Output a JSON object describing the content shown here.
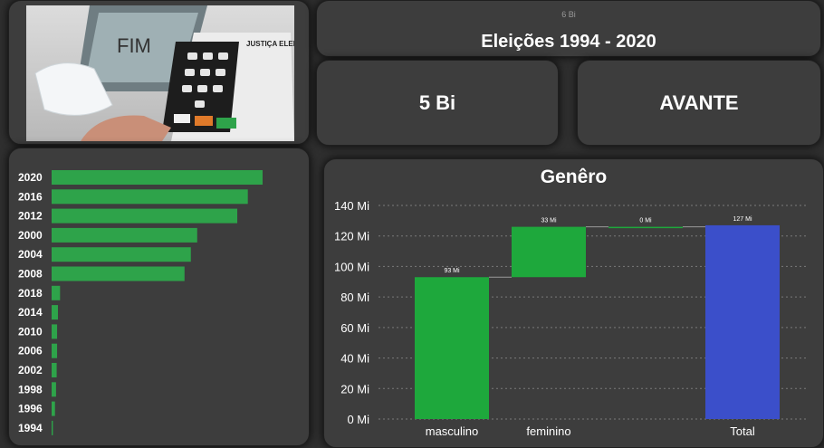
{
  "header": {
    "subtitle": "6 Bi",
    "title": "Eleições 1994 - 2020"
  },
  "kpi": {
    "value": "5 Bi"
  },
  "party": {
    "name": "AVANTE"
  },
  "photo": {
    "screen_text": "FIM",
    "sticker_text": "JUSTIÇA ELEITORAL"
  },
  "years_chart": {
    "type": "bar",
    "orientation": "horizontal",
    "categories": [
      "2020",
      "2016",
      "2012",
      "2000",
      "2004",
      "2008",
      "2018",
      "2014",
      "2010",
      "2006",
      "2002",
      "1998",
      "1996",
      "1994"
    ],
    "values": [
      100,
      93,
      88,
      69,
      66,
      63,
      4,
      3,
      2.6,
      2.6,
      2.4,
      2.1,
      1.6,
      0.6
    ],
    "color": "#2ea34a"
  },
  "chart_data": {
    "type": "waterfall",
    "title": "Genêro",
    "categories": [
      "masculino",
      "feminino",
      "",
      "Total"
    ],
    "values": [
      93,
      33,
      0,
      127
    ],
    "data_labels": [
      "93 Mi",
      "33 Mi",
      "0 Mi",
      "127 Mi"
    ],
    "yticks": [
      "0 Mi",
      "20 Mi",
      "40 Mi",
      "60 Mi",
      "80 Mi",
      "100 Mi",
      "120 Mi",
      "140 Mi"
    ],
    "ylim": [
      0,
      140
    ],
    "grid": true,
    "colors": {
      "increase": "#1ea83c",
      "total": "#3b4fca"
    }
  }
}
